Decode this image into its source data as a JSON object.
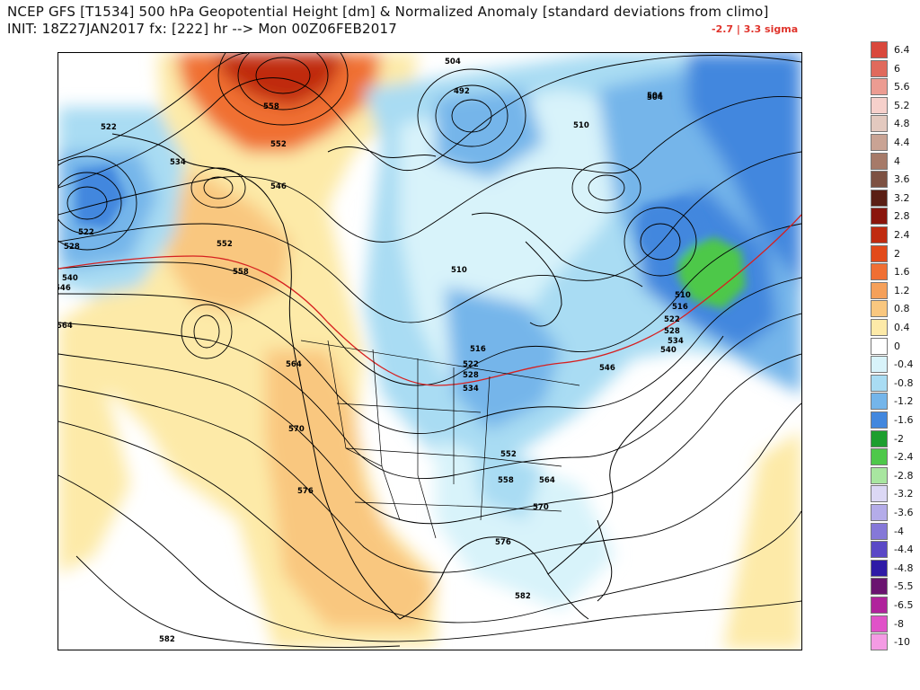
{
  "header": {
    "title_line1": "NCEP GFS [T1534] 500 hPa Geopotential Height [dm] & Normalized Anomaly [standard deviations from climo]",
    "title_line2": "INIT: 18Z27JAN2017 fx: [222] hr --> Mon 00Z06FEB2017",
    "sigma_range": "-2.7 | 3.3 sigma"
  },
  "colors": {
    "strong_positive": "#d9542f",
    "positive": "#f0a05a",
    "weak_positive": "#fbe6a6",
    "weak_negative": "#c6ecf5",
    "negative": "#6aaee6",
    "strong_negative": "#2e6ed8",
    "extreme_negative": "#3cbf3a",
    "contour": "#000000",
    "freezing_line": "#d62020",
    "land_border": "#000000"
  },
  "contour_labels": [
    "504",
    "504",
    "492",
    "510",
    "522",
    "534",
    "558",
    "552",
    "546",
    "522",
    "528",
    "540",
    "546",
    "552",
    "558",
    "564",
    "510",
    "504",
    "510",
    "516",
    "522",
    "528",
    "534",
    "540",
    "546",
    "516",
    "522",
    "528",
    "534",
    "564",
    "570",
    "576",
    "552",
    "558",
    "564",
    "570",
    "576",
    "582",
    "582"
  ],
  "legend": {
    "entries": [
      {
        "label": "6.4",
        "color": "#d9483c"
      },
      {
        "label": "6",
        "color": "#e06a5c"
      },
      {
        "label": "5.6",
        "color": "#ec9c92"
      },
      {
        "label": "5.2",
        "color": "#f6d0cb"
      },
      {
        "label": "4.8",
        "color": "#e3c9bf"
      },
      {
        "label": "4.4",
        "color": "#c9a394"
      },
      {
        "label": "4",
        "color": "#a67a69"
      },
      {
        "label": "3.6",
        "color": "#7d5142"
      },
      {
        "label": "3.2",
        "color": "#5a1e14"
      },
      {
        "label": "2.8",
        "color": "#8a150c"
      },
      {
        "label": "2.4",
        "color": "#c02b10"
      },
      {
        "label": "2",
        "color": "#e24a1a"
      },
      {
        "label": "1.6",
        "color": "#f06f33"
      },
      {
        "label": "1.2",
        "color": "#f5a05a"
      },
      {
        "label": "0.8",
        "color": "#f9c77f"
      },
      {
        "label": "0.4",
        "color": "#fdeaa8"
      },
      {
        "label": "0",
        "color": "#ffffff"
      },
      {
        "label": "-0.4",
        "color": "#d8f3fa"
      },
      {
        "label": "-0.8",
        "color": "#a9dcf3"
      },
      {
        "label": "-1.2",
        "color": "#74b5ea"
      },
      {
        "label": "-1.6",
        "color": "#4287de"
      },
      {
        "label": "-2",
        "color": "#1d9e2f"
      },
      {
        "label": "-2.4",
        "color": "#4ec84a"
      },
      {
        "label": "-2.8",
        "color": "#a8e6a0"
      },
      {
        "label": "-3.2",
        "color": "#dcd8f5"
      },
      {
        "label": "-3.6",
        "color": "#b4ace9"
      },
      {
        "label": "-4",
        "color": "#8578d8"
      },
      {
        "label": "-4.4",
        "color": "#5a48c6"
      },
      {
        "label": "-4.8",
        "color": "#2e1aa6"
      },
      {
        "label": "-5.5",
        "color": "#6a1470"
      },
      {
        "label": "-6.5",
        "color": "#b0239c"
      },
      {
        "label": "-8",
        "color": "#e052c8"
      },
      {
        "label": "-10",
        "color": "#f49be4"
      }
    ]
  }
}
